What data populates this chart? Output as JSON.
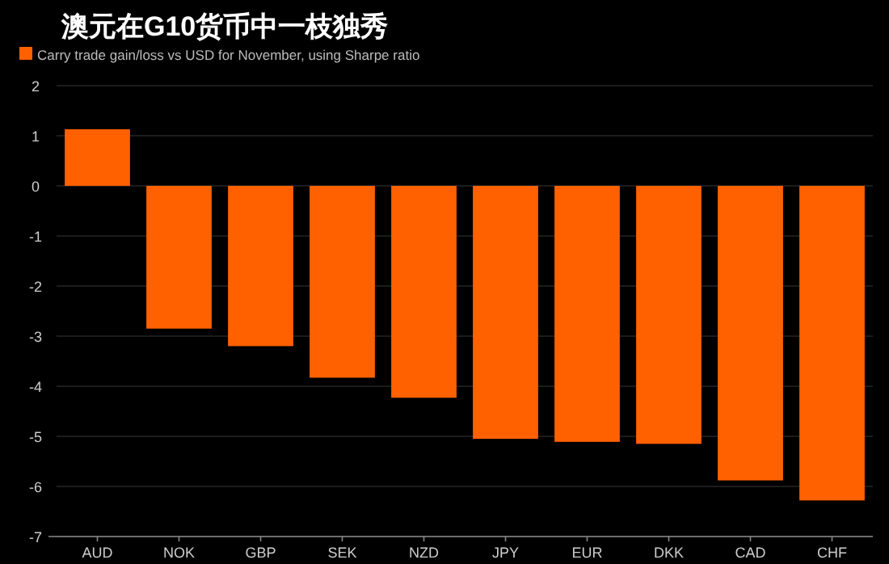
{
  "chart_data": {
    "type": "bar",
    "title": "澳元在G10货币中一枝独秀",
    "categories": [
      "AUD",
      "NOK",
      "GBP",
      "SEK",
      "NZD",
      "JPY",
      "EUR",
      "DKK",
      "CAD",
      "CHF"
    ],
    "series": [
      {
        "name": "Carry trade gain/loss vs USD for November, using Sharpe ratio",
        "color": "#ff6000",
        "values": [
          1.13,
          -2.85,
          -3.2,
          -3.83,
          -4.23,
          -5.05,
          -5.11,
          -5.15,
          -5.88,
          -6.28
        ]
      }
    ],
    "ylim": [
      -7,
      2
    ],
    "yticks": [
      -7,
      -6,
      -5,
      -4,
      -3,
      -2,
      -1,
      0,
      1,
      2
    ],
    "grid": "y",
    "legend": "top left"
  }
}
